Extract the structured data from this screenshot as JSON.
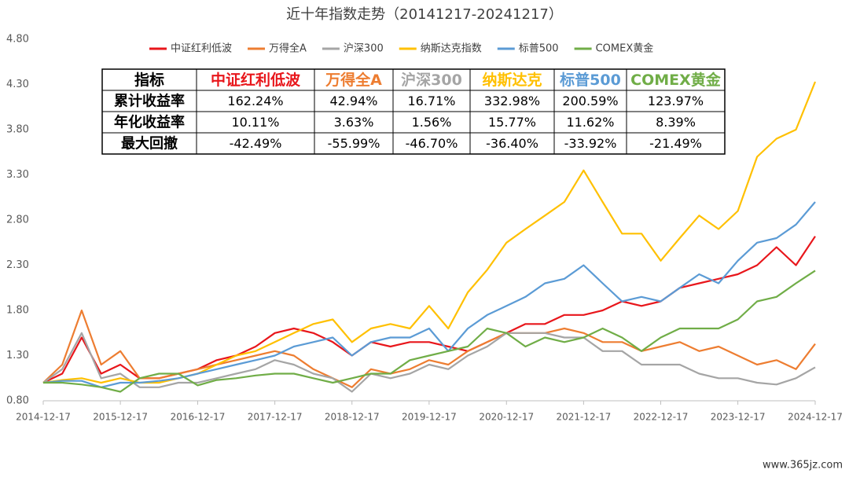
{
  "chart_data": {
    "type": "line",
    "title": "近十年指数走势（20141217-20241217）",
    "x": [
      "2014-12-17",
      "2015-03-17",
      "2015-06-17",
      "2015-09-17",
      "2015-12-17",
      "2016-03-17",
      "2016-06-17",
      "2016-09-17",
      "2016-12-17",
      "2017-03-17",
      "2017-06-17",
      "2017-09-17",
      "2017-12-17",
      "2018-03-17",
      "2018-06-17",
      "2018-09-17",
      "2018-12-17",
      "2019-03-17",
      "2019-06-17",
      "2019-09-17",
      "2019-12-17",
      "2020-03-17",
      "2020-06-17",
      "2020-09-17",
      "2020-12-17",
      "2021-03-17",
      "2021-06-17",
      "2021-09-17",
      "2021-12-17",
      "2022-03-17",
      "2022-06-17",
      "2022-09-17",
      "2022-12-17",
      "2023-03-17",
      "2023-06-17",
      "2023-09-17",
      "2023-12-17",
      "2024-03-17",
      "2024-06-17",
      "2024-09-17",
      "2024-12-17"
    ],
    "series": [
      {
        "name": "中证红利低波",
        "color": "#e8161b",
        "values": [
          1.0,
          1.1,
          1.5,
          1.1,
          1.2,
          1.05,
          1.05,
          1.1,
          1.15,
          1.25,
          1.3,
          1.4,
          1.55,
          1.6,
          1.55,
          1.45,
          1.3,
          1.45,
          1.4,
          1.45,
          1.45,
          1.4,
          1.35,
          1.45,
          1.55,
          1.65,
          1.65,
          1.75,
          1.75,
          1.8,
          1.9,
          1.85,
          1.9,
          2.05,
          2.1,
          2.15,
          2.2,
          2.3,
          2.5,
          2.3,
          2.62
        ]
      },
      {
        "name": "万得全A",
        "color": "#ed7d31",
        "values": [
          1.0,
          1.2,
          1.8,
          1.2,
          1.35,
          1.05,
          1.05,
          1.1,
          1.15,
          1.2,
          1.25,
          1.3,
          1.35,
          1.3,
          1.15,
          1.05,
          0.95,
          1.15,
          1.1,
          1.15,
          1.25,
          1.2,
          1.35,
          1.45,
          1.55,
          1.55,
          1.55,
          1.6,
          1.55,
          1.45,
          1.45,
          1.35,
          1.4,
          1.45,
          1.35,
          1.4,
          1.3,
          1.2,
          1.25,
          1.15,
          1.43
        ]
      },
      {
        "name": "沪深300",
        "color": "#a5a5a5",
        "values": [
          1.0,
          1.15,
          1.55,
          1.05,
          1.1,
          0.95,
          0.95,
          1.0,
          1.0,
          1.05,
          1.1,
          1.15,
          1.25,
          1.2,
          1.1,
          1.05,
          0.9,
          1.1,
          1.05,
          1.1,
          1.2,
          1.15,
          1.3,
          1.4,
          1.55,
          1.55,
          1.55,
          1.5,
          1.5,
          1.35,
          1.35,
          1.2,
          1.2,
          1.2,
          1.1,
          1.05,
          1.05,
          1.0,
          0.98,
          1.05,
          1.17
        ]
      },
      {
        "name": "纳斯达克指数",
        "color": "#ffc000",
        "values": [
          1.0,
          1.03,
          1.05,
          1.0,
          1.05,
          1.0,
          1.0,
          1.05,
          1.1,
          1.2,
          1.3,
          1.35,
          1.45,
          1.55,
          1.65,
          1.7,
          1.45,
          1.6,
          1.65,
          1.6,
          1.85,
          1.6,
          2.0,
          2.25,
          2.55,
          2.7,
          2.85,
          3.0,
          3.35,
          3.0,
          2.65,
          2.65,
          2.35,
          2.6,
          2.85,
          2.7,
          2.9,
          3.5,
          3.7,
          3.8,
          4.33
        ]
      },
      {
        "name": "标普500",
        "color": "#5b9bd5",
        "values": [
          1.0,
          1.02,
          1.02,
          0.95,
          1.0,
          1.0,
          1.02,
          1.05,
          1.1,
          1.15,
          1.2,
          1.25,
          1.3,
          1.4,
          1.45,
          1.5,
          1.3,
          1.45,
          1.5,
          1.5,
          1.6,
          1.35,
          1.6,
          1.75,
          1.85,
          1.95,
          2.1,
          2.15,
          2.3,
          2.1,
          1.9,
          1.95,
          1.9,
          2.05,
          2.2,
          2.1,
          2.35,
          2.55,
          2.6,
          2.75,
          3.0
        ]
      },
      {
        "name": "COMEX黄金",
        "color": "#70ad47",
        "values": [
          1.0,
          1.0,
          0.98,
          0.95,
          0.9,
          1.05,
          1.1,
          1.1,
          0.97,
          1.03,
          1.05,
          1.08,
          1.1,
          1.1,
          1.05,
          1.0,
          1.05,
          1.1,
          1.1,
          1.25,
          1.3,
          1.35,
          1.4,
          1.6,
          1.55,
          1.4,
          1.5,
          1.45,
          1.5,
          1.6,
          1.5,
          1.35,
          1.5,
          1.6,
          1.6,
          1.6,
          1.7,
          1.9,
          1.95,
          2.1,
          2.24
        ]
      }
    ],
    "xlim": [
      "2014-12-17",
      "2024-12-17"
    ],
    "xticks": [
      "2014-12-17",
      "2015-12-17",
      "2016-12-17",
      "2017-12-17",
      "2018-12-17",
      "2019-12-17",
      "2020-12-17",
      "2021-12-17",
      "2022-12-17",
      "2023-12-17",
      "2024-12-17"
    ],
    "ylim": [
      0.8,
      4.8
    ],
    "yticks": [
      {
        "value": 0.8,
        "label": "0.80"
      },
      {
        "value": 1.3,
        "label": "1.30"
      },
      {
        "value": 1.8,
        "label": "1.80"
      },
      {
        "value": 2.3,
        "label": "2.30"
      },
      {
        "value": 2.8,
        "label": "2.80"
      },
      {
        "value": 3.3,
        "label": "3.30"
      },
      {
        "value": 3.8,
        "label": "3.80"
      },
      {
        "value": 4.3,
        "label": "4.30"
      },
      {
        "value": 4.8,
        "label": "4.80"
      }
    ],
    "legend": "top",
    "table": {
      "header": [
        "指标",
        "中证红利低波",
        "万得全A",
        "沪深300",
        "纳斯达克",
        "标普500",
        "COMEX黄金"
      ],
      "rows": [
        [
          "累计收益率",
          "162.24%",
          "42.94%",
          "16.71%",
          "332.98%",
          "200.59%",
          "123.97%"
        ],
        [
          "年化收益率",
          "10.11%",
          "3.63%",
          "1.56%",
          "15.77%",
          "11.62%",
          "8.39%"
        ],
        [
          "最大回撤",
          "-42.49%",
          "-55.99%",
          "-46.70%",
          "-36.40%",
          "-33.92%",
          "-21.49%"
        ]
      ]
    },
    "watermark": "www.365jz.com"
  }
}
